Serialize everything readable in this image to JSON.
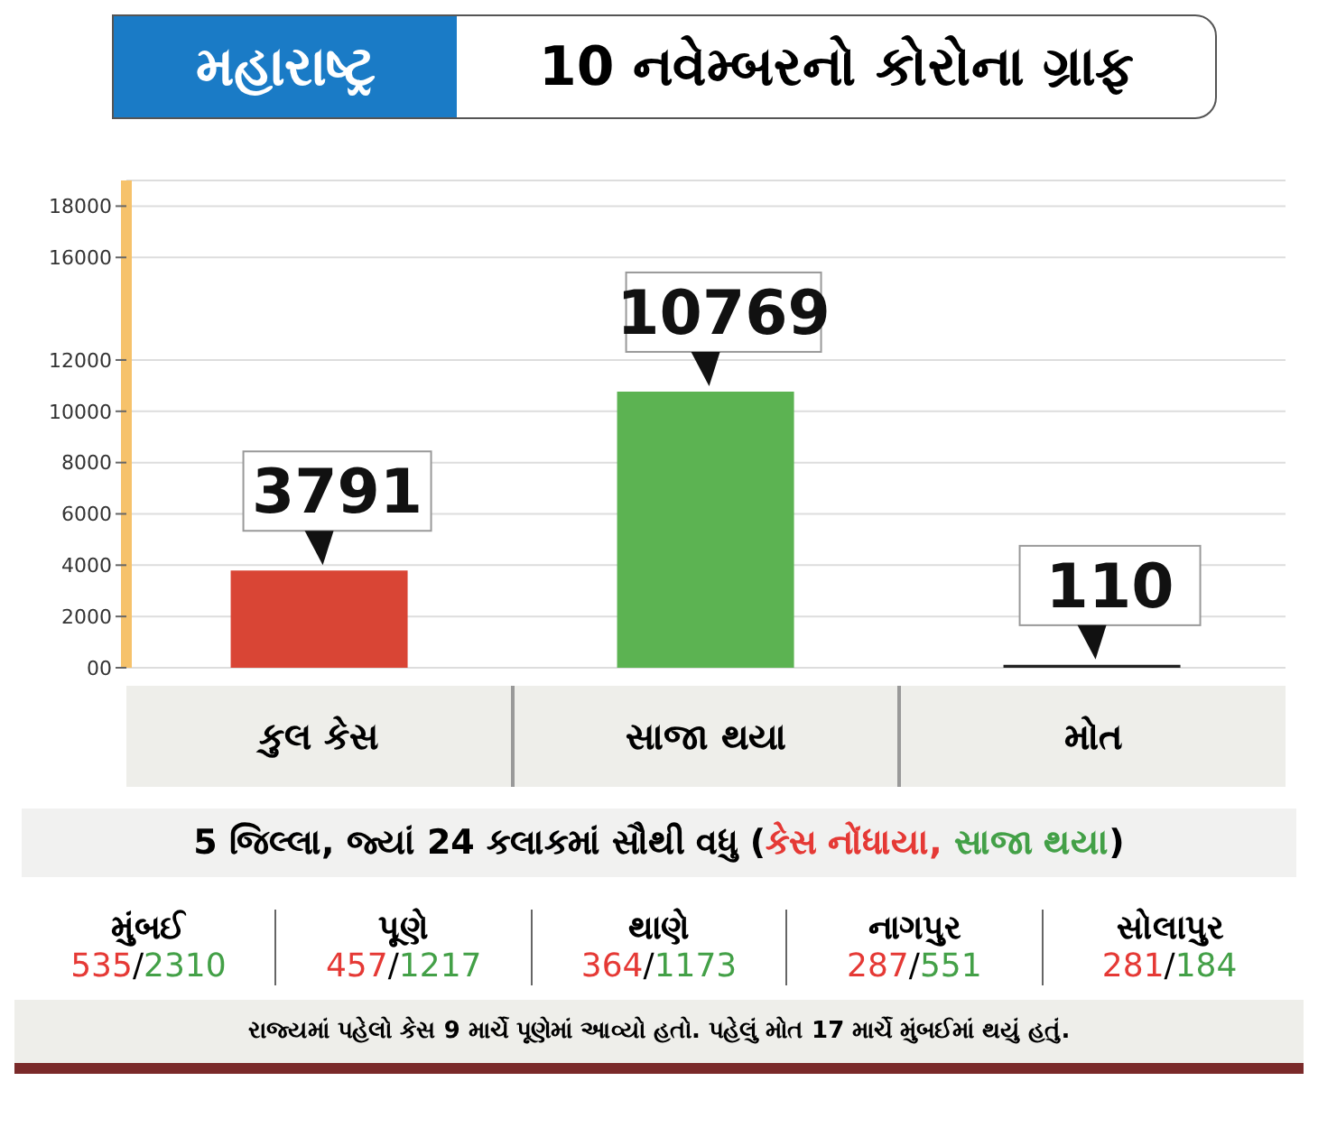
{
  "chart_data": {
    "type": "bar",
    "title": "મહારાષ્ટ્ર",
    "subtitle": "10 નવેમ્બરનો કોરોના ગ્રાફ",
    "categories": [
      "કુલ કેસ",
      "સાજા થયા",
      "મોત"
    ],
    "values": [
      3791,
      10769,
      110
    ],
    "colors": [
      "#d94535",
      "#5cb352",
      "#222222"
    ],
    "data_labels": true,
    "ylim": [
      0,
      19000
    ],
    "yticks": [
      {
        "value": 0,
        "label": "00"
      },
      2000,
      4000,
      6000,
      8000,
      10000,
      12000,
      16000,
      18000
    ],
    "grid": "y",
    "annotations": [
      "5 જિલ્લા, જ્યાં 24 કલાકમાં સૌથી વધુ (કેસ નોંધાયા, સાજા થયા)",
      "મુંબઈ",
      "535/2310",
      "પૂણે",
      "457/1217",
      "થાણે",
      "364/1173",
      "નાગપુર",
      "287/551",
      "સોલાપુર",
      "281/184",
      "રાજ્યમાં પહેલો કેસ 9 માર્ચે પૂણેમાં આવ્યો હતો. પહેલું મોત 17 માર્ચે મુંબઈમાં થયું હતું."
    ]
  }
}
